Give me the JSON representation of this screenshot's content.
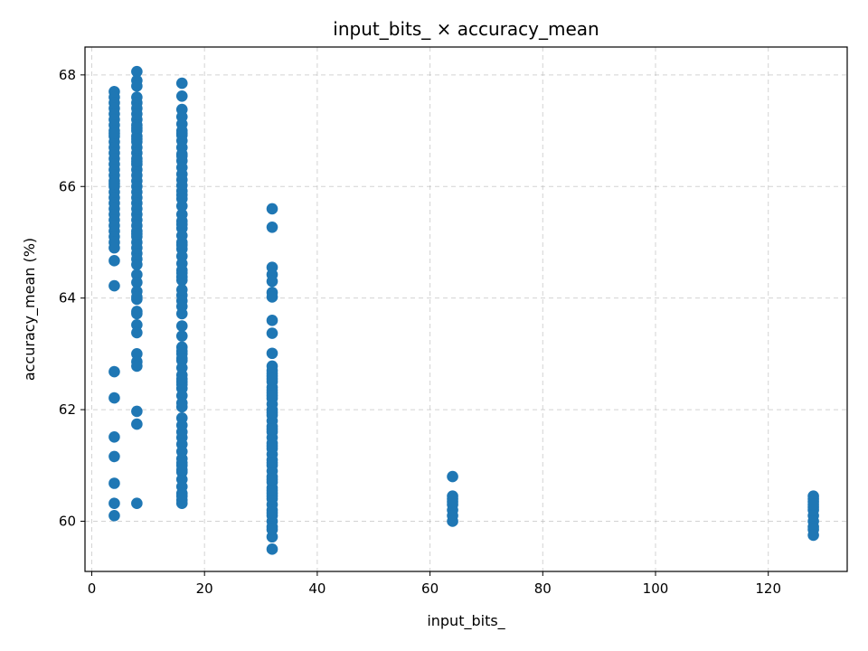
{
  "chart_data": {
    "type": "scatter",
    "title": "input_bits_ × accuracy_mean",
    "xlabel": "input_bits_",
    "ylabel": "accuracy_mean (%)",
    "xlim": [
      -1.2,
      134.0
    ],
    "ylim": [
      59.1,
      68.5
    ],
    "xticks": [
      0,
      20,
      40,
      60,
      80,
      100,
      120
    ],
    "yticks": [
      60,
      62,
      64,
      66,
      68
    ],
    "grid": true,
    "marker_color": "#1f77b4",
    "series": [
      {
        "x": [
          4,
          4,
          4,
          4,
          4,
          4,
          4,
          4,
          4,
          4,
          4,
          4,
          4,
          4,
          4,
          4,
          4,
          4,
          4,
          4,
          4,
          4,
          4,
          4,
          4,
          4,
          4,
          4,
          4,
          4,
          4,
          4,
          4,
          4,
          4,
          4,
          4,
          4,
          4,
          4,
          8,
          8,
          8,
          8,
          8,
          8,
          8,
          8,
          8,
          8,
          8,
          8,
          8,
          8,
          8,
          8,
          8,
          8,
          8,
          8,
          8,
          8,
          8,
          8,
          8,
          8,
          8,
          8,
          8,
          8,
          8,
          8,
          8,
          8,
          8,
          8,
          8,
          8,
          8,
          8,
          8,
          8,
          8,
          8,
          8,
          8,
          8,
          8,
          8,
          8,
          8,
          8,
          8,
          16,
          16,
          16,
          16,
          16,
          16,
          16,
          16,
          16,
          16,
          16,
          16,
          16,
          16,
          16,
          16,
          16,
          16,
          16,
          16,
          16,
          16,
          16,
          16,
          16,
          16,
          16,
          16,
          16,
          16,
          16,
          16,
          16,
          16,
          16,
          16,
          16,
          16,
          16,
          16,
          16,
          16,
          16,
          16,
          16,
          16,
          16,
          16,
          16,
          16,
          16,
          16,
          16,
          16,
          16,
          16,
          16,
          16,
          16,
          16,
          16,
          16,
          16,
          16,
          16,
          16,
          16,
          16,
          16,
          16,
          16,
          16,
          16,
          32,
          32,
          32,
          32,
          32,
          32,
          32,
          32,
          32,
          32,
          32,
          32,
          32,
          32,
          32,
          32,
          32,
          32,
          32,
          32,
          32,
          32,
          32,
          32,
          32,
          32,
          32,
          32,
          32,
          32,
          32,
          32,
          32,
          32,
          32,
          32,
          32,
          32,
          32,
          32,
          32,
          32,
          32,
          32,
          32,
          32,
          32,
          32,
          32,
          32,
          32,
          32,
          32,
          32,
          32,
          64,
          64,
          64,
          64,
          64,
          64,
          64,
          64,
          128,
          128,
          128,
          128,
          128,
          128,
          128,
          128,
          128,
          128,
          128
        ],
        "y": [
          67.7,
          67.6,
          67.5,
          67.4,
          67.3,
          67.2,
          67.1,
          67.0,
          66.9,
          66.8,
          66.7,
          66.6,
          66.5,
          66.4,
          66.3,
          66.2,
          66.1,
          66.0,
          65.9,
          65.8,
          65.7,
          65.6,
          65.5,
          65.4,
          65.3,
          65.2,
          65.1,
          65.0,
          64.9,
          64.67,
          64.22,
          62.68,
          62.21,
          61.51,
          61.16,
          60.68,
          60.32,
          60.1,
          66.95,
          66.05,
          68.06,
          67.9,
          67.8,
          67.6,
          67.5,
          67.4,
          67.3,
          67.2,
          67.1,
          67.0,
          66.9,
          66.8,
          66.7,
          66.6,
          66.5,
          66.4,
          66.3,
          66.2,
          66.1,
          66.0,
          65.9,
          65.8,
          65.7,
          65.6,
          65.5,
          65.4,
          65.3,
          65.2,
          65.1,
          65.0,
          64.9,
          64.8,
          64.7,
          64.42,
          64.28,
          64.12,
          63.98,
          63.76,
          63.52,
          63.38,
          63.0,
          62.86,
          62.78,
          61.97,
          61.74,
          60.32,
          64.02,
          65.15,
          66.45,
          67.05,
          63.72,
          64.6,
          66.85,
          67.85,
          67.62,
          67.38,
          67.25,
          67.12,
          66.92,
          66.82,
          66.7,
          66.58,
          66.46,
          66.34,
          66.22,
          66.12,
          66.02,
          65.92,
          65.85,
          65.5,
          65.38,
          65.25,
          65.12,
          65.0,
          64.88,
          64.75,
          64.62,
          64.5,
          64.38,
          64.32,
          64.05,
          63.95,
          63.85,
          63.72,
          63.5,
          63.12,
          63.0,
          62.88,
          62.75,
          62.62,
          62.5,
          62.38,
          62.25,
          62.12,
          61.85,
          61.6,
          61.5,
          61.38,
          61.25,
          61.12,
          61.0,
          60.88,
          60.75,
          60.62,
          60.5,
          60.38,
          60.32,
          62.45,
          63.05,
          61.05,
          60.92,
          62.92,
          66.55,
          65.65,
          64.95,
          62.55,
          65.78,
          64.15,
          63.32,
          62.05,
          61.72,
          60.45,
          66.95,
          64.45,
          65.32,
          67.0,
          65.6,
          65.27,
          64.55,
          64.42,
          64.3,
          64.1,
          64.02,
          63.6,
          63.37,
          63.01,
          62.78,
          62.7,
          62.6,
          62.5,
          62.4,
          62.3,
          62.2,
          62.1,
          62.0,
          61.9,
          61.8,
          61.7,
          61.6,
          61.5,
          61.4,
          61.3,
          61.2,
          61.1,
          61.0,
          60.9,
          60.8,
          60.7,
          60.6,
          60.5,
          60.4,
          60.3,
          60.2,
          60.1,
          60.0,
          59.9,
          59.72,
          59.5,
          62.65,
          62.35,
          61.95,
          61.65,
          61.35,
          61.05,
          60.75,
          60.45,
          60.15,
          59.85,
          62.55,
          62.25,
          60.55,
          60.8,
          60.45,
          60.4,
          60.3,
          60.2,
          60.1,
          60.0,
          60.35,
          60.45,
          60.4,
          60.35,
          60.25,
          60.2,
          60.1,
          60.0,
          59.9,
          59.85,
          59.75,
          60.3
        ]
      }
    ]
  }
}
